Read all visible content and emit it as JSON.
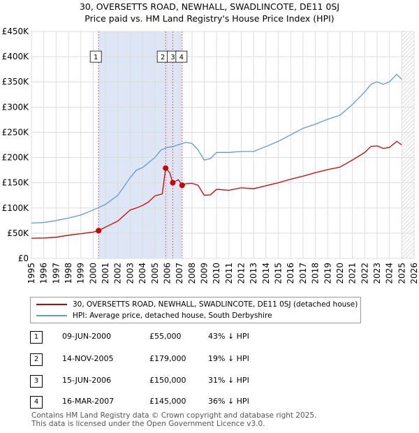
{
  "title_line1": "30, OVERSETTS ROAD, NEWHALL, SWADLINCOTE, DE11 0SJ",
  "title_line2": "Price paid vs. HM Land Registry's House Price Index (HPI)",
  "colors": {
    "property": "#cc0000",
    "hpi": "#6699cc",
    "shade": "#dde6f5",
    "grid": "#dddddd"
  },
  "chart_data": {
    "type": "line",
    "xlim": [
      1995,
      2026
    ],
    "ylim": [
      0,
      450000
    ],
    "y_ticks": [
      0,
      50000,
      100000,
      150000,
      200000,
      250000,
      300000,
      350000,
      400000,
      450000
    ],
    "y_tick_labels": [
      "£0",
      "£50K",
      "£100K",
      "£150K",
      "£200K",
      "£250K",
      "£300K",
      "£350K",
      "£400K",
      "£450K"
    ],
    "x_ticks": [
      1995,
      1996,
      1997,
      1998,
      1999,
      2000,
      2001,
      2002,
      2003,
      2004,
      2005,
      2006,
      2007,
      2008,
      2009,
      2010,
      2011,
      2012,
      2013,
      2014,
      2015,
      2016,
      2017,
      2018,
      2019,
      2020,
      2021,
      2022,
      2023,
      2024,
      2025,
      2026
    ],
    "x_tick_labels": [
      "1995",
      "1996",
      "1997",
      "1998",
      "1999",
      "2000",
      "2001",
      "2002",
      "2003",
      "2004",
      "2005",
      "2006",
      "2007",
      "2008",
      "2009",
      "2010",
      "2011",
      "2012",
      "2013",
      "2014",
      "2015",
      "2016",
      "2017",
      "2018",
      "2019",
      "2020",
      "2021",
      "2022",
      "2023",
      "2024",
      "2025",
      "2026"
    ],
    "shaded_range": [
      2000.44,
      2007.21
    ],
    "forecast_from": 2025.0,
    "series": [
      {
        "name": "30, OVERSETTS ROAD, NEWHALL, SWADLINCOTE, DE11 0SJ (detached house)",
        "color": "#cc0000",
        "points": [
          [
            1995.0,
            40000
          ],
          [
            1996.0,
            40500
          ],
          [
            1997.0,
            42000
          ],
          [
            1998.0,
            46000
          ],
          [
            1999.0,
            49000
          ],
          [
            2000.0,
            52000
          ],
          [
            2000.44,
            55000
          ],
          [
            2001.0,
            62000
          ],
          [
            2002.0,
            74000
          ],
          [
            2002.5,
            85000
          ],
          [
            2003.0,
            96000
          ],
          [
            2003.5,
            100000
          ],
          [
            2004.0,
            105000
          ],
          [
            2004.5,
            112000
          ],
          [
            2005.0,
            124000
          ],
          [
            2005.6,
            128000
          ],
          [
            2005.87,
            179000
          ],
          [
            2006.2,
            170000
          ],
          [
            2006.45,
            150000
          ],
          [
            2006.9,
            156000
          ],
          [
            2007.21,
            145000
          ],
          [
            2007.5,
            148000
          ],
          [
            2008.0,
            149000
          ],
          [
            2008.5,
            145000
          ],
          [
            2009.0,
            125000
          ],
          [
            2009.5,
            126000
          ],
          [
            2010.0,
            137000
          ],
          [
            2011.0,
            135000
          ],
          [
            2012.0,
            140000
          ],
          [
            2013.0,
            138000
          ],
          [
            2014.0,
            144000
          ],
          [
            2015.0,
            150000
          ],
          [
            2016.0,
            157000
          ],
          [
            2017.0,
            163000
          ],
          [
            2018.0,
            170000
          ],
          [
            2019.0,
            176000
          ],
          [
            2020.0,
            181000
          ],
          [
            2021.0,
            195000
          ],
          [
            2022.0,
            210000
          ],
          [
            2022.5,
            222000
          ],
          [
            2023.0,
            223000
          ],
          [
            2023.5,
            218000
          ],
          [
            2024.0,
            220000
          ],
          [
            2024.6,
            232000
          ],
          [
            2025.0,
            225000
          ]
        ]
      },
      {
        "name": "HPI: Average price, detached house, South Derbyshire",
        "color": "#6699cc",
        "points": [
          [
            1995.0,
            70000
          ],
          [
            1996.0,
            71000
          ],
          [
            1997.0,
            75000
          ],
          [
            1998.0,
            80000
          ],
          [
            1999.0,
            86000
          ],
          [
            2000.0,
            96000
          ],
          [
            2001.0,
            107000
          ],
          [
            2002.0,
            125000
          ],
          [
            2003.0,
            160000
          ],
          [
            2003.5,
            175000
          ],
          [
            2004.0,
            180000
          ],
          [
            2004.5,
            190000
          ],
          [
            2005.0,
            200000
          ],
          [
            2005.5,
            215000
          ],
          [
            2006.0,
            220000
          ],
          [
            2006.5,
            222000
          ],
          [
            2007.0,
            226000
          ],
          [
            2007.5,
            230000
          ],
          [
            2008.0,
            228000
          ],
          [
            2008.5,
            215000
          ],
          [
            2009.0,
            195000
          ],
          [
            2009.5,
            198000
          ],
          [
            2010.0,
            210000
          ],
          [
            2011.0,
            210000
          ],
          [
            2012.0,
            212000
          ],
          [
            2013.0,
            212000
          ],
          [
            2014.0,
            222000
          ],
          [
            2015.0,
            232000
          ],
          [
            2016.0,
            245000
          ],
          [
            2017.0,
            258000
          ],
          [
            2018.0,
            266000
          ],
          [
            2019.0,
            276000
          ],
          [
            2020.0,
            284000
          ],
          [
            2021.0,
            305000
          ],
          [
            2022.0,
            330000
          ],
          [
            2022.5,
            345000
          ],
          [
            2023.0,
            350000
          ],
          [
            2023.5,
            345000
          ],
          [
            2024.0,
            350000
          ],
          [
            2024.6,
            365000
          ],
          [
            2025.0,
            355000
          ]
        ]
      }
    ],
    "sales": [
      {
        "n": "1",
        "x": 2000.44,
        "y": 55000,
        "label_y": 400000
      },
      {
        "n": "2",
        "x": 2005.87,
        "y": 179000,
        "label_y": 400000
      },
      {
        "n": "3",
        "x": 2006.45,
        "y": 150000,
        "label_y": 400000
      },
      {
        "n": "4",
        "x": 2007.21,
        "y": 145000,
        "label_y": 400000
      }
    ]
  },
  "legend": {
    "property": "30, OVERSETTS ROAD, NEWHALL, SWADLINCOTE, DE11 0SJ (detached house)",
    "hpi": "HPI: Average price, detached house, South Derbyshire"
  },
  "transactions": [
    {
      "n": "1",
      "date": "09-JUN-2000",
      "price": "£55,000",
      "hpi": "43% ↓ HPI"
    },
    {
      "n": "2",
      "date": "14-NOV-2005",
      "price": "£179,000",
      "hpi": "19% ↓ HPI"
    },
    {
      "n": "3",
      "date": "15-JUN-2006",
      "price": "£150,000",
      "hpi": "31% ↓ HPI"
    },
    {
      "n": "4",
      "date": "16-MAR-2007",
      "price": "£145,000",
      "hpi": "36% ↓ HPI"
    }
  ],
  "footer_line1": "Contains HM Land Registry data © Crown copyright and database right 2025.",
  "footer_line2": "This data is licensed under the Open Government Licence v3.0."
}
